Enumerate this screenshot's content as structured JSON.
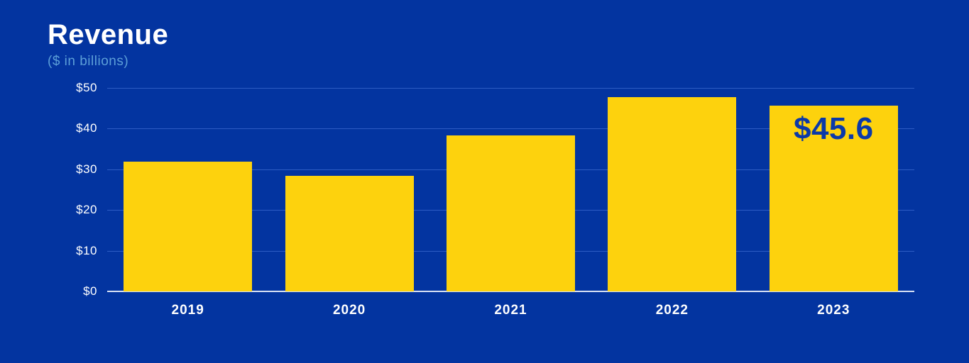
{
  "header": {
    "title": "Revenue",
    "subtitle": "($ in billions)"
  },
  "chart_data": {
    "type": "bar",
    "title": "Revenue",
    "subtitle": "($ in billions)",
    "ylabel": "$ in billions",
    "categories": [
      "2019",
      "2020",
      "2021",
      "2022",
      "2023"
    ],
    "values": [
      31.9,
      28.4,
      38.3,
      47.7,
      45.6
    ],
    "value_labels": [
      "",
      "",
      "",
      "",
      "$45.6"
    ],
    "ylim": [
      0,
      50
    ],
    "yticks": {
      "values": [
        50,
        40,
        30,
        20,
        10,
        0
      ],
      "labels": [
        "$50",
        "$40",
        "$30",
        "$20",
        "$10",
        "$0"
      ]
    },
    "grid": true,
    "legend": "none",
    "colors": {
      "background": "#0334A0",
      "bar": "#FDD20D",
      "gridline": "#2D5CC4",
      "axis_line": "#D9E2F5",
      "title": "#FFFFFF",
      "subtitle": "#5C9FD8",
      "tick_label": "#FFFFFF",
      "category_label": "#FFFFFF",
      "value_label": "#0B39A8"
    }
  }
}
